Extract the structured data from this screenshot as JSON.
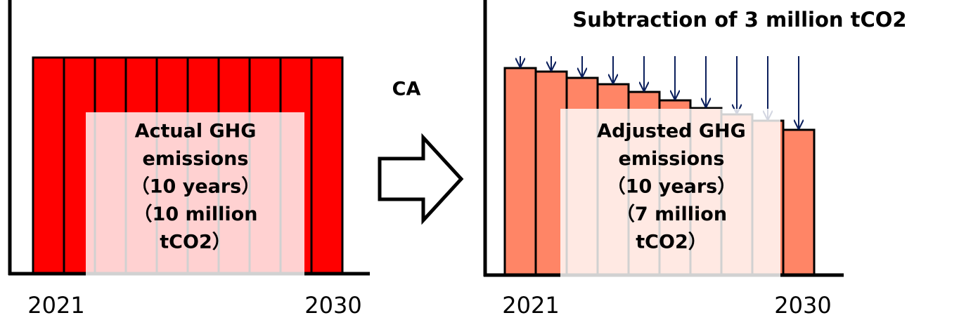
{
  "left": {
    "label_lines": [
      "Actual GHG",
      "emissions",
      "（10 years）",
      "（10 million",
      "tCO2）"
    ],
    "start_year": "2021",
    "end_year": "2030"
  },
  "middle": {
    "label": "CA"
  },
  "right": {
    "title": "Subtraction of 3 million tCO2",
    "label_lines": [
      "Adjusted GHG",
      "emissions",
      "（10 years）",
      "（7 million",
      "tCO2）"
    ],
    "start_year": "2021",
    "end_year": "2030"
  }
}
